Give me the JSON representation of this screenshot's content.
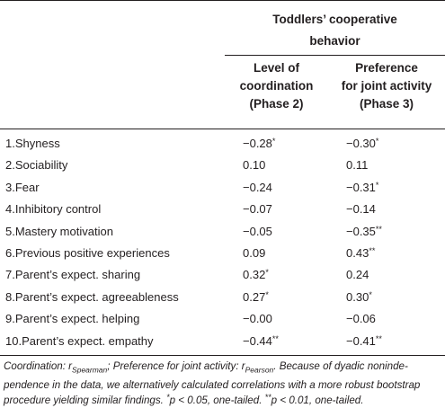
{
  "header": {
    "group_title_line1": "Toddlers’ cooperative",
    "group_title_line2": "behavior",
    "col1_line1": "Level of",
    "col1_line2": "coordination",
    "col1_line3": "(Phase 2)",
    "col2_line1": "Preference",
    "col2_line2": "for joint activity",
    "col2_line3": "(Phase 3)"
  },
  "rows": [
    {
      "label": "1.Shyness",
      "v1": "−0.28",
      "v1_sup": "*",
      "v2": "−0.30",
      "v2_sup": "*"
    },
    {
      "label": "2.Sociability",
      "v1": "0.10",
      "v1_sup": "",
      "v2": "0.11",
      "v2_sup": ""
    },
    {
      "label": "3.Fear",
      "v1": "−0.24",
      "v1_sup": "",
      "v2": "−0.31",
      "v2_sup": "*"
    },
    {
      "label": "4.Inhibitory control",
      "v1": "−0.07",
      "v1_sup": "",
      "v2": "−0.14",
      "v2_sup": ""
    },
    {
      "label": "5.Mastery motivation",
      "v1": "−0.05",
      "v1_sup": "",
      "v2": "−0.35",
      "v2_sup": "**"
    },
    {
      "label": "6.Previous positive experiences",
      "v1": "0.09",
      "v1_sup": "",
      "v2": "0.43",
      "v2_sup": "**"
    },
    {
      "label": "7.Parent’s expect. sharing",
      "v1": "0.32",
      "v1_sup": "*",
      "v2": "0.24",
      "v2_sup": ""
    },
    {
      "label": "8.Parent’s expect. agreeableness",
      "v1": "0.27",
      "v1_sup": "*",
      "v2": "0.30",
      "v2_sup": "*"
    },
    {
      "label": "9.Parent’s expect. helping",
      "v1": "−0.00",
      "v1_sup": "",
      "v2": "−0.06",
      "v2_sup": ""
    },
    {
      "label": "10.Parent’s expect. empathy",
      "v1": "−0.44",
      "v1_sup": "**",
      "v2": "−0.41",
      "v2_sup": "**"
    }
  ],
  "footnote": {
    "p1": "Coordination: r",
    "p1_sub": "Spearman",
    "p2": "; Preference for joint activity: r",
    "p2_sub": "Pearson",
    "p3": ". Because of dyadic noninde­pendence in the data, we alternatively calculated correlations with a more robust bootstrap procedure yielding similar findings. ",
    "sup1": "*",
    "p4": "p < 0.05, one-tailed. ",
    "sup2": "**",
    "p5": "p < 0.01, one-tailed."
  }
}
